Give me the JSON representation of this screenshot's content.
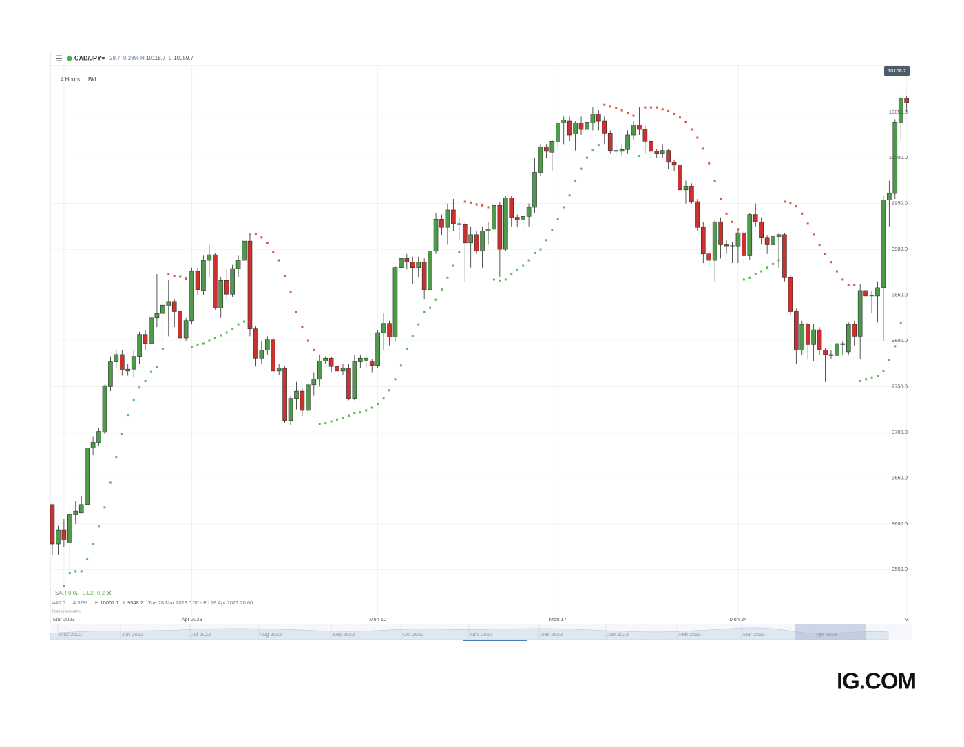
{
  "header": {
    "symbol": "CAD/JPY",
    "change": 28.7,
    "change_pct": "0.28%",
    "high_label": "H",
    "high": 10118.7,
    "low_label": "L",
    "low": 10059.7,
    "interval": "4 Hours",
    "price_side": "Bid"
  },
  "chart_data": {
    "type": "candlestick",
    "categories": [
      null,
      null,
      "Mar 2023",
      null,
      null,
      null,
      null,
      null,
      null,
      null,
      null,
      null,
      null,
      null,
      null,
      null,
      null,
      null,
      null,
      null,
      null,
      null,
      null,
      null,
      "Apr 2023",
      null,
      null,
      null,
      null,
      null,
      null,
      null,
      null,
      null,
      null,
      null,
      null,
      null,
      null,
      null,
      null,
      null,
      null,
      null,
      null,
      null,
      null,
      null,
      null,
      null,
      null,
      null,
      null,
      null,
      null,
      null,
      "Mon 10",
      null,
      null,
      null,
      null,
      null,
      null,
      null,
      null,
      null,
      null,
      null,
      null,
      null,
      null,
      null,
      null,
      null,
      null,
      null,
      null,
      null,
      null,
      null,
      null,
      null,
      null,
      null,
      null,
      null,
      null,
      "Mon 17",
      null,
      null,
      null,
      null,
      null,
      null,
      null,
      null,
      null,
      null,
      null,
      null,
      null,
      null,
      null,
      null,
      null,
      null,
      null,
      null,
      null,
      null,
      null,
      null,
      null,
      null,
      null,
      null,
      null,
      null,
      "Mon 24",
      null,
      null,
      null,
      null,
      null,
      null,
      null,
      null,
      null,
      null,
      null,
      null,
      null,
      null,
      null,
      null,
      null,
      null,
      null,
      null,
      null,
      null,
      null,
      null,
      null,
      null,
      null,
      null,
      "M"
    ],
    "open": [
      9621,
      9578,
      9593,
      9580,
      9610,
      9612,
      9621,
      9683,
      9689,
      9700,
      9750,
      9777,
      9785,
      9767,
      9769,
      9783,
      9807,
      9797,
      9825,
      9830,
      9838,
      9843,
      9832,
      9803,
      9822,
      9876,
      9855,
      9888,
      9894,
      9836,
      9866,
      9851,
      9879,
      9888,
      9909,
      9813,
      9781,
      9790,
      9801,
      9767,
      9770,
      9713,
      9737,
      9745,
      9724,
      9752,
      9758,
      9778,
      9781,
      9772,
      9767,
      9770,
      9737,
      9777,
      9778,
      9777,
      9773,
      9809,
      9819,
      9804,
      9880,
      9890,
      9886,
      9880,
      9886,
      9856,
      9898,
      9933,
      9924,
      9943,
      9928,
      9927,
      9907,
      9916,
      9898,
      9920,
      9922,
      9948,
      9900,
      9956,
      9935,
      9932,
      9936,
      9946,
      9984,
      10012,
      10006,
      10018,
      10038,
      10040,
      10026,
      10038,
      10031,
      10038,
      10048,
      10040,
      10027,
      10008,
      10007,
      10009,
      10025,
      10036,
      10031,
      10018,
      10007,
      10005,
      10008,
      9995,
      9992,
      9965,
      9969,
      9952,
      9924,
      9895,
      9888,
      9930,
      9905,
      9904,
      9903,
      9918,
      9893,
      9938,
      9930,
      9913,
      9905,
      9914,
      9916,
      9869,
      9832,
      9790,
      9818,
      9796,
      9812,
      9790,
      9785,
      9784,
      9797,
      9788,
      9818,
      9805,
      9855,
      9849,
      9849,
      9858,
      9954,
      9961,
      10039,
      10065
    ],
    "high": [
      9622,
      9598,
      9605,
      9615,
      9625,
      9630,
      9686,
      9695,
      9705,
      9752,
      9783,
      9790,
      9790,
      9775,
      9790,
      9810,
      9812,
      9830,
      9873,
      9845,
      9867,
      9845,
      9835,
      9825,
      9880,
      9880,
      9893,
      9905,
      9896,
      9870,
      9878,
      9883,
      9893,
      9915,
      9915,
      9816,
      9800,
      9805,
      9805,
      9775,
      9772,
      9740,
      9755,
      9748,
      9758,
      9765,
      9785,
      9783,
      9783,
      9775,
      9775,
      9775,
      9785,
      9785,
      9785,
      9780,
      9812,
      9830,
      9822,
      9882,
      9895,
      9895,
      9892,
      9892,
      9890,
      9900,
      9940,
      9938,
      9950,
      9955,
      9935,
      9930,
      9925,
      9920,
      9925,
      9930,
      9955,
      9952,
      9958,
      9958,
      9938,
      9945,
      9950,
      10000,
      10015,
      10015,
      10020,
      10040,
      10045,
      10045,
      10040,
      10045,
      10044,
      10055,
      10052,
      10045,
      10030,
      10015,
      10015,
      10030,
      10040,
      10055,
      10035,
      10020,
      10010,
      10015,
      10010,
      9998,
      9995,
      9975,
      9972,
      9955,
      9930,
      9898,
      9932,
      9935,
      9910,
      9908,
      9922,
      9922,
      9940,
      9950,
      9935,
      9915,
      9930,
      9918,
      9918,
      9872,
      9835,
      9822,
      9820,
      9818,
      9815,
      9792,
      9790,
      9800,
      9800,
      9820,
      9822,
      9862,
      9858,
      9855,
      9865,
      9958,
      9975,
      10042,
      10068,
      10068
    ],
    "low": [
      9566,
      9566,
      9575,
      9545,
      9600,
      9612,
      9618,
      9675,
      9685,
      9698,
      9745,
      9770,
      9762,
      9762,
      9760,
      9775,
      9790,
      9790,
      9815,
      9798,
      9805,
      9815,
      9798,
      9800,
      9818,
      9850,
      9850,
      9870,
      9834,
      9825,
      9845,
      9848,
      9870,
      9883,
      9805,
      9772,
      9775,
      9785,
      9763,
      9763,
      9710,
      9708,
      9725,
      9718,
      9720,
      9740,
      9750,
      9775,
      9765,
      9760,
      9763,
      9735,
      9735,
      9770,
      9770,
      9765,
      9770,
      9790,
      9795,
      9800,
      9870,
      9878,
      9862,
      9870,
      9845,
      9845,
      9895,
      9915,
      9905,
      9920,
      9910,
      9865,
      9880,
      9895,
      9880,
      9905,
      9900,
      9870,
      9898,
      9925,
      9925,
      9920,
      9925,
      9940,
      9980,
      10000,
      9985,
      10010,
      10015,
      10018,
      10008,
      10025,
      10025,
      10030,
      10030,
      10015,
      10005,
      10003,
      10002,
      10005,
      10020,
      10025,
      10005,
      10000,
      10000,
      10000,
      9988,
      9985,
      9955,
      9950,
      9950,
      9920,
      9885,
      9880,
      9865,
      9890,
      9895,
      9885,
      9885,
      9885,
      9888,
      9925,
      9905,
      9895,
      9898,
      9880,
      9865,
      9828,
      9775,
      9785,
      9780,
      9778,
      9785,
      9755,
      9780,
      9782,
      9785,
      9785,
      9795,
      9780,
      9830,
      9830,
      9820,
      9800,
      9925,
      9955,
      10020,
      10050
    ],
    "close": [
      9578,
      9593,
      9582,
      9610,
      9614,
      9621,
      9683,
      9689,
      9701,
      9751,
      9777,
      9785,
      9768,
      9769,
      9783,
      9807,
      9797,
      9825,
      9830,
      9839,
      9843,
      9832,
      9803,
      9822,
      9876,
      9856,
      9888,
      9894,
      9836,
      9866,
      9851,
      9879,
      9888,
      9909,
      9813,
      9781,
      9790,
      9801,
      9767,
      9770,
      9713,
      9737,
      9745,
      9724,
      9752,
      9758,
      9778,
      9781,
      9772,
      9767,
      9770,
      9737,
      9777,
      9781,
      9781,
      9773,
      9809,
      9819,
      9804,
      9880,
      9890,
      9886,
      9880,
      9886,
      9856,
      9898,
      9933,
      9924,
      9943,
      9928,
      9927,
      9907,
      9916,
      9898,
      9920,
      9922,
      9948,
      9900,
      9956,
      9935,
      9932,
      9936,
      9946,
      9984,
      10012,
      10007,
      10018,
      10038,
      10041,
      10025,
      10038,
      10031,
      10039,
      10048,
      10040,
      10027,
      10008,
      10007,
      10009,
      10025,
      10036,
      10031,
      10018,
      10007,
      10005,
      10008,
      9995,
      9992,
      9965,
      9969,
      9952,
      9924,
      9895,
      9888,
      9930,
      9905,
      9903,
      9903,
      9918,
      9893,
      9938,
      9930,
      9913,
      9905,
      9914,
      9916,
      9869,
      9832,
      9790,
      9818,
      9796,
      9812,
      9790,
      9785,
      9784,
      9797,
      9796,
      9818,
      9805,
      9855,
      9849,
      9850,
      9858,
      9954,
      9961,
      10039,
      10065,
      10060
    ],
    "colors": {
      "up": "#4f9a4a",
      "down": "#c9322e",
      "wick": "#2b2b2b"
    },
    "sar": {
      "name": "SAR",
      "params": [
        0.02,
        0.02,
        0.2
      ],
      "values": [
        null,
        null,
        9532,
        9546,
        9548,
        9548,
        9561,
        9578,
        9597,
        9618,
        9645,
        9673,
        9698,
        9719,
        9735,
        9749,
        9756,
        9766,
        9771,
        9791,
        9873,
        9871,
        9870,
        9868,
        9793,
        9796,
        9797,
        9800,
        9803,
        9806,
        9809,
        9813,
        9818,
        9821,
        9916,
        9917,
        9913,
        9907,
        9897,
        9888,
        9871,
        9853,
        9832,
        9815,
        9800,
        9790,
        9709,
        9710,
        9712,
        9714,
        9716,
        9718,
        9721,
        9722,
        9724,
        9727,
        9731,
        9737,
        9746,
        9758,
        9773,
        9791,
        9805,
        9818,
        9832,
        9836,
        9845,
        9856,
        9869,
        9882,
        9897,
        9952,
        9951,
        9949,
        9948,
        9946,
        9867,
        9866,
        9867,
        9873,
        9878,
        9882,
        9888,
        9896,
        9900,
        9910,
        9921,
        9933,
        9946,
        9959,
        9975,
        9988,
        10000,
        10008,
        10014,
        10058,
        10056,
        10054,
        10052,
        10049,
        10046,
        10002,
        10055,
        10055,
        10055,
        10053,
        10051,
        10048,
        10044,
        10039,
        10031,
        10022,
        10010,
        9994,
        9975,
        9955,
        9939,
        9930,
        9922,
        9867,
        9869,
        9873,
        9876,
        9880,
        9884,
        9888,
        9952,
        9950,
        9947,
        9939,
        9928,
        9916,
        9905,
        9895,
        9886,
        9876,
        9867,
        9861,
        9861,
        9756,
        9758,
        9760,
        9762,
        9767,
        9779,
        9794,
        9820,
        null
      ],
      "colors": {
        "above": "#d9534f",
        "below": "#5cb85c"
      }
    },
    "last_price": 10108.2,
    "ylim": [
      9499,
      10101
    ],
    "yticks": [
      {
        "value": 9550,
        "label": "9550.0"
      },
      {
        "value": 9600,
        "label": "9600.0"
      },
      {
        "value": 9650,
        "label": "9650.0"
      },
      {
        "value": 9700,
        "label": "9700.0"
      },
      {
        "value": 9750,
        "label": "9750.0"
      },
      {
        "value": 9800,
        "label": "9800.0"
      },
      {
        "value": 9850,
        "label": "9850.0"
      },
      {
        "value": 9900,
        "label": "9900.0"
      },
      {
        "value": 9950,
        "label": "9950.0"
      },
      {
        "value": 10000,
        "label": "10000.0"
      },
      {
        "value": 10050,
        "label": "10050.0"
      }
    ],
    "grid": true
  },
  "legend": {
    "range_change": "440.0",
    "range_change_pct": "4.57%",
    "range_high": "H 10067.1",
    "range_low": "L 9548.2",
    "range_dates": "Tue 28 Mar 2023 0:00 - Fri 28 Apr 2023 20:00",
    "note": "Data is indicative"
  },
  "navigator": {
    "labels": [
      "May 2022",
      "Jun 2022",
      "Jul 2022",
      "Aug 2022",
      "Sep 2022",
      "Oct 2022",
      "Nov 2022",
      "Dec 2022",
      "Jan 2023",
      "Feb 2023",
      "Mar 2023",
      "Apr 2023"
    ]
  },
  "logo": "IG.COM"
}
